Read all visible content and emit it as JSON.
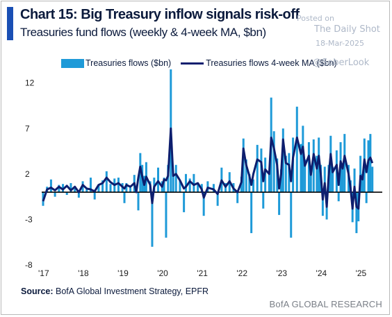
{
  "header": {
    "title": "Chart 15: Big Treasury inflow signals risk-off",
    "subtitle": "Treasuries fund flows (weekly & 4-week MA, $bn)"
  },
  "watermark": {
    "posted": "Posted on",
    "site": "The Daily Shot",
    "date": "18-Mar-2025",
    "handle": "@SoberLook"
  },
  "footer": {
    "source_label": "Source:",
    "source_text": " BofA Global Investment Strategy, EPFR",
    "brand": "BofA GLOBAL RESEARCH"
  },
  "colors": {
    "bars": "#1e9ad8",
    "ma_line": "#0d1e6e",
    "zero_line": "#000000",
    "accent": "#1a4fb4"
  },
  "chart_data": {
    "type": "bar",
    "legend_placement": "top",
    "grid": false,
    "series": [
      {
        "name": "Treasuries flows ($bn)",
        "kind": "bar"
      },
      {
        "name": "Treasuries flows 4-week MA ($bn)",
        "kind": "line"
      }
    ],
    "y_ticks": [
      12,
      7,
      2,
      -3,
      -8
    ],
    "ylim": [
      -8,
      13.5
    ],
    "x_ticks": [
      "'17",
      "'18",
      "'19",
      "'20",
      "'21",
      "'22",
      "'23",
      "'24",
      "'25"
    ],
    "xlim": [
      2017.0,
      2025.55
    ],
    "weekly_flows": [
      [
        2017.0,
        -1.5
      ],
      [
        2017.1,
        0.6
      ],
      [
        2017.2,
        1.4
      ],
      [
        2017.3,
        -0.5
      ],
      [
        2017.4,
        0.8
      ],
      [
        2017.5,
        0.9
      ],
      [
        2017.6,
        -0.3
      ],
      [
        2017.7,
        1.0
      ],
      [
        2017.8,
        0.6
      ],
      [
        2017.9,
        -0.6
      ],
      [
        2018.0,
        1.2
      ],
      [
        2018.1,
        0.4
      ],
      [
        2018.2,
        1.6
      ],
      [
        2018.3,
        -0.8
      ],
      [
        2018.4,
        0.7
      ],
      [
        2018.5,
        1.3
      ],
      [
        2018.6,
        2.3
      ],
      [
        2018.7,
        0.9
      ],
      [
        2018.8,
        1.5
      ],
      [
        2018.9,
        1.6
      ],
      [
        2019.0,
        1.0
      ],
      [
        2019.05,
        -1.2
      ],
      [
        2019.1,
        1.0
      ],
      [
        2019.2,
        0.5
      ],
      [
        2019.3,
        1.9
      ],
      [
        2019.35,
        0.6
      ],
      [
        2019.4,
        -2.0
      ],
      [
        2019.45,
        4.3
      ],
      [
        2019.5,
        3.0
      ],
      [
        2019.55,
        1.8
      ],
      [
        2019.6,
        3.3
      ],
      [
        2019.7,
        1.2
      ],
      [
        2019.75,
        -6.0
      ],
      [
        2019.8,
        1.6
      ],
      [
        2019.9,
        2.7
      ],
      [
        2020.0,
        1.2
      ],
      [
        2020.05,
        1.6
      ],
      [
        2020.1,
        -5.0
      ],
      [
        2020.15,
        3.0
      ],
      [
        2020.22,
        13.5
      ],
      [
        2020.28,
        2.0
      ],
      [
        2020.35,
        3.0
      ],
      [
        2020.45,
        1.3
      ],
      [
        2020.55,
        -2.2
      ],
      [
        2020.6,
        2.0
      ],
      [
        2020.7,
        1.5
      ],
      [
        2020.8,
        2.0
      ],
      [
        2020.9,
        1.0
      ],
      [
        2021.0,
        0.9
      ],
      [
        2021.05,
        -2.6
      ],
      [
        2021.15,
        1.2
      ],
      [
        2021.3,
        0.9
      ],
      [
        2021.4,
        -1.5
      ],
      [
        2021.5,
        2.7
      ],
      [
        2021.6,
        1.0
      ],
      [
        2021.7,
        2.2
      ],
      [
        2021.8,
        1.0
      ],
      [
        2021.9,
        -1.2
      ],
      [
        2022.0,
        1.7
      ],
      [
        2022.05,
        5.9
      ],
      [
        2022.12,
        3.6
      ],
      [
        2022.2,
        2.0
      ],
      [
        2022.25,
        -4.5
      ],
      [
        2022.3,
        1.4
      ],
      [
        2022.4,
        5.2
      ],
      [
        2022.5,
        4.8
      ],
      [
        2022.55,
        -1.8
      ],
      [
        2022.6,
        3.8
      ],
      [
        2022.7,
        2.0
      ],
      [
        2022.75,
        10.4
      ],
      [
        2022.82,
        6.7
      ],
      [
        2022.9,
        3.7
      ],
      [
        2022.95,
        -2.5
      ],
      [
        2023.0,
        2.5
      ],
      [
        2023.05,
        7.0
      ],
      [
        2023.12,
        4.0
      ],
      [
        2023.2,
        4.3
      ],
      [
        2023.25,
        -5.0
      ],
      [
        2023.3,
        6.0
      ],
      [
        2023.4,
        9.4
      ],
      [
        2023.5,
        5.3
      ],
      [
        2023.55,
        7.3
      ],
      [
        2023.6,
        3.6
      ],
      [
        2023.7,
        5.5
      ],
      [
        2023.75,
        2.6
      ],
      [
        2023.82,
        5.8
      ],
      [
        2023.9,
        4.0
      ],
      [
        2023.95,
        6.0
      ],
      [
        2024.0,
        3.0
      ],
      [
        2024.05,
        -2.6
      ],
      [
        2024.1,
        2.8
      ],
      [
        2024.15,
        -3.0
      ],
      [
        2024.2,
        3.0
      ],
      [
        2024.25,
        6.2
      ],
      [
        2024.3,
        2.8
      ],
      [
        2024.4,
        4.6
      ],
      [
        2024.45,
        -1.0
      ],
      [
        2024.5,
        5.5
      ],
      [
        2024.55,
        3.0
      ],
      [
        2024.6,
        6.4
      ],
      [
        2024.7,
        3.0
      ],
      [
        2024.75,
        1.3
      ],
      [
        2024.8,
        -3.3
      ],
      [
        2024.85,
        2.6
      ],
      [
        2024.9,
        -4.5
      ],
      [
        2024.95,
        -3.2
      ],
      [
        2025.0,
        4.0
      ],
      [
        2025.05,
        2.0
      ],
      [
        2025.1,
        5.9
      ],
      [
        2025.15,
        -1.2
      ],
      [
        2025.2,
        5.7
      ],
      [
        2025.25,
        6.4
      ],
      [
        2025.3,
        2.8
      ]
    ],
    "ma_4wk": [
      [
        2017.0,
        -1.0
      ],
      [
        2017.1,
        0.3
      ],
      [
        2017.2,
        0.5
      ],
      [
        2017.3,
        0.2
      ],
      [
        2017.4,
        0.6
      ],
      [
        2017.5,
        0.3
      ],
      [
        2017.6,
        0.7
      ],
      [
        2017.7,
        0.2
      ],
      [
        2017.8,
        0.6
      ],
      [
        2017.9,
        0.0
      ],
      [
        2018.0,
        0.8
      ],
      [
        2018.1,
        0.4
      ],
      [
        2018.2,
        0.3
      ],
      [
        2018.3,
        0.1
      ],
      [
        2018.4,
        0.8
      ],
      [
        2018.5,
        1.0
      ],
      [
        2018.6,
        1.6
      ],
      [
        2018.7,
        1.1
      ],
      [
        2018.8,
        0.8
      ],
      [
        2018.9,
        1.0
      ],
      [
        2019.0,
        0.6
      ],
      [
        2019.05,
        0.4
      ],
      [
        2019.1,
        0.8
      ],
      [
        2019.2,
        0.6
      ],
      [
        2019.3,
        1.0
      ],
      [
        2019.35,
        0.0
      ],
      [
        2019.4,
        1.6
      ],
      [
        2019.45,
        2.8
      ],
      [
        2019.5,
        1.7
      ],
      [
        2019.55,
        0.8
      ],
      [
        2019.6,
        1.7
      ],
      [
        2019.7,
        0.8
      ],
      [
        2019.75,
        -1.2
      ],
      [
        2019.8,
        0.6
      ],
      [
        2019.9,
        1.2
      ],
      [
        2020.0,
        0.6
      ],
      [
        2020.05,
        1.4
      ],
      [
        2020.1,
        1.3
      ],
      [
        2020.15,
        1.8
      ],
      [
        2020.22,
        7.0
      ],
      [
        2020.28,
        1.8
      ],
      [
        2020.35,
        2.0
      ],
      [
        2020.45,
        1.3
      ],
      [
        2020.55,
        0.4
      ],
      [
        2020.6,
        0.6
      ],
      [
        2020.7,
        1.2
      ],
      [
        2020.8,
        0.8
      ],
      [
        2020.9,
        1.0
      ],
      [
        2021.0,
        0.3
      ],
      [
        2021.05,
        -0.6
      ],
      [
        2021.15,
        0.5
      ],
      [
        2021.3,
        0.3
      ],
      [
        2021.4,
        -0.2
      ],
      [
        2021.5,
        1.3
      ],
      [
        2021.6,
        0.6
      ],
      [
        2021.7,
        1.2
      ],
      [
        2021.8,
        0.4
      ],
      [
        2021.9,
        0.0
      ],
      [
        2022.0,
        1.1
      ],
      [
        2022.05,
        4.8
      ],
      [
        2022.12,
        3.0
      ],
      [
        2022.2,
        1.8
      ],
      [
        2022.25,
        0.8
      ],
      [
        2022.3,
        2.0
      ],
      [
        2022.4,
        3.6
      ],
      [
        2022.5,
        3.3
      ],
      [
        2022.55,
        1.2
      ],
      [
        2022.6,
        2.5
      ],
      [
        2022.7,
        2.0
      ],
      [
        2022.75,
        6.0
      ],
      [
        2022.82,
        4.8
      ],
      [
        2022.9,
        3.0
      ],
      [
        2022.95,
        0.4
      ],
      [
        2023.0,
        2.0
      ],
      [
        2023.05,
        5.8
      ],
      [
        2023.12,
        3.2
      ],
      [
        2023.2,
        3.0
      ],
      [
        2023.25,
        1.2
      ],
      [
        2023.3,
        3.8
      ],
      [
        2023.4,
        6.0
      ],
      [
        2023.5,
        4.2
      ],
      [
        2023.55,
        5.0
      ],
      [
        2023.6,
        2.9
      ],
      [
        2023.7,
        4.0
      ],
      [
        2023.75,
        1.9
      ],
      [
        2023.82,
        4.2
      ],
      [
        2023.9,
        2.6
      ],
      [
        2023.95,
        4.0
      ],
      [
        2024.0,
        2.0
      ],
      [
        2024.05,
        -0.8
      ],
      [
        2024.1,
        1.0
      ],
      [
        2024.15,
        -1.6
      ],
      [
        2024.2,
        1.8
      ],
      [
        2024.25,
        4.2
      ],
      [
        2024.3,
        2.2
      ],
      [
        2024.4,
        3.0
      ],
      [
        2024.45,
        0.8
      ],
      [
        2024.5,
        3.4
      ],
      [
        2024.55,
        2.6
      ],
      [
        2024.6,
        4.0
      ],
      [
        2024.7,
        2.0
      ],
      [
        2024.75,
        0.5
      ],
      [
        2024.8,
        -1.8
      ],
      [
        2024.85,
        0.6
      ],
      [
        2024.9,
        -1.6
      ],
      [
        2024.95,
        -1.8
      ],
      [
        2025.0,
        1.8
      ],
      [
        2025.05,
        1.4
      ],
      [
        2025.1,
        3.6
      ],
      [
        2025.15,
        2.2
      ],
      [
        2025.2,
        3.5
      ],
      [
        2025.25,
        3.8
      ],
      [
        2025.3,
        3.2
      ]
    ]
  }
}
